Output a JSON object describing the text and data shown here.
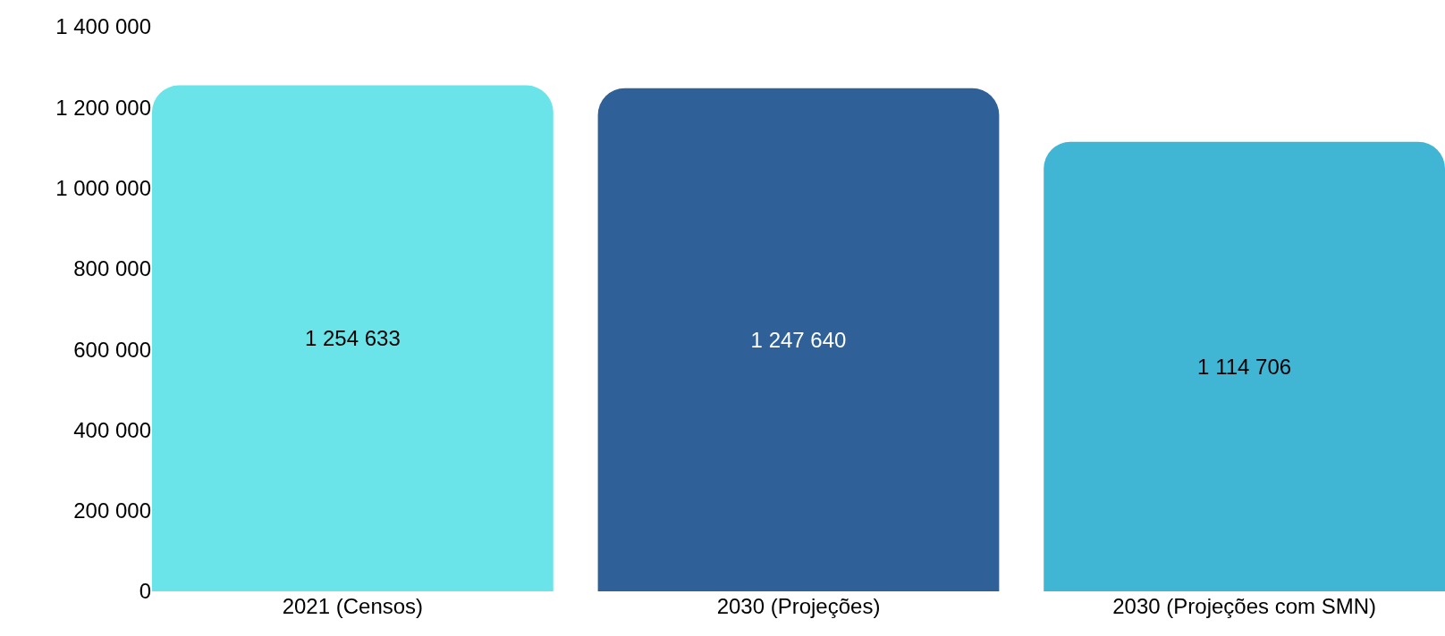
{
  "chart_data": {
    "type": "bar",
    "categories": [
      "2021 (Censos)",
      "2030 (Projeções)",
      "2030 (Projeções com SMN)"
    ],
    "values": [
      1254633,
      1247640,
      1114706
    ],
    "colors": [
      "#6ae4e8",
      "#2f6097",
      "#41b6d4"
    ],
    "value_labels": [
      "1 254 633",
      "1 247 640",
      "1 114 706"
    ],
    "ylim": [
      0,
      1400000
    ],
    "yticks": [
      0,
      {
        "value": 200000,
        "label": "200 000"
      },
      {
        "value": 400000,
        "label": "400 000"
      },
      {
        "value": 600000,
        "label": "600 000"
      },
      {
        "value": 800000,
        "label": "800 000"
      },
      {
        "value": 1000000,
        "label": "1 000 000"
      },
      {
        "value": 1200000,
        "label": "1 200 000"
      },
      {
        "value": 1400000,
        "label": "1 400 000"
      }
    ]
  }
}
